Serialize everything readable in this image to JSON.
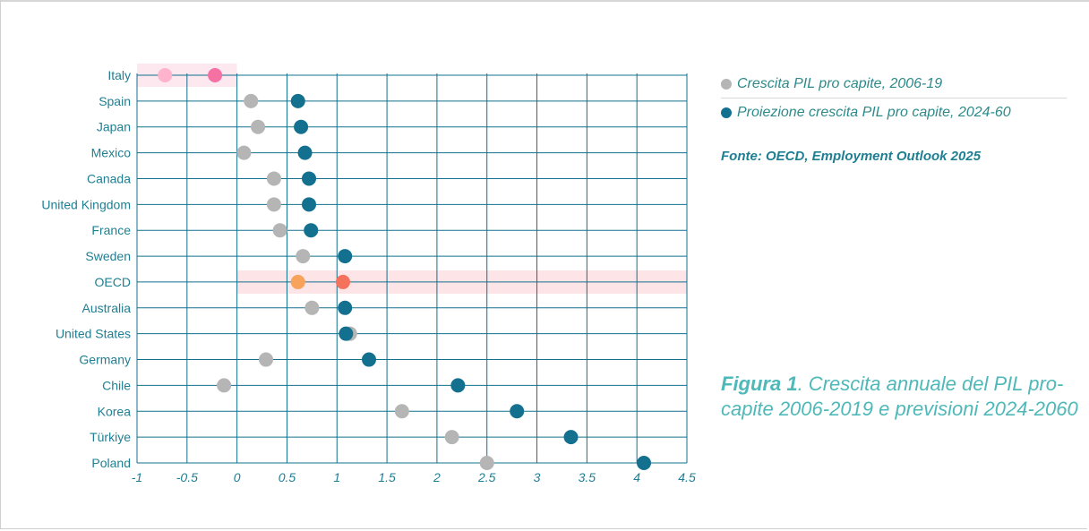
{
  "chart_data": {
    "type": "scatter",
    "title": "",
    "xlabel": "",
    "ylabel": "",
    "xlim": [
      -1,
      4.5
    ],
    "xticks": [
      "-1",
      "-0.5",
      "0",
      "0.5",
      "1",
      "1.5",
      "2",
      "2.5",
      "3",
      "3.5",
      "4",
      "4.5"
    ],
    "grid": true,
    "categories": [
      "Italy",
      "Spain",
      "Japan",
      "Mexico",
      "Canada",
      "United Kingdom",
      "France",
      "Sweden",
      "OECD",
      "Australia",
      "United States",
      "Germany",
      "Chile",
      "Korea",
      "Türkiye",
      "Poland"
    ],
    "series": [
      {
        "name": "Crescita PIL pro capite, 2006-19",
        "color": "#b5b5b5",
        "values": [
          -0.72,
          0.14,
          0.21,
          0.07,
          0.37,
          0.37,
          0.43,
          0.66,
          0.61,
          0.75,
          1.13,
          0.29,
          -0.13,
          1.65,
          2.15,
          2.5
        ]
      },
      {
        "name": "Proiezione crescita PIL pro capite, 2024-60",
        "color": "#13708e",
        "values": [
          -0.22,
          0.61,
          0.64,
          0.68,
          0.72,
          0.72,
          0.74,
          1.08,
          1.06,
          1.08,
          1.09,
          1.32,
          2.21,
          2.8,
          3.34,
          4.07
        ]
      }
    ],
    "highlight": {
      "Italy": {
        "series_colors": [
          "#ffb3cd",
          "#f570a3"
        ],
        "band": "#fde8f0"
      },
      "OECD": {
        "series_colors": [
          "#f7a35c",
          "#f4715b"
        ],
        "band": "#fde4e6"
      }
    },
    "legend_position": "right",
    "legend": [
      "Crescita PIL pro capite, 2006-19",
      "Proiezione crescita PIL pro capite, 2024-60"
    ]
  },
  "source": "Fonte: OECD, Employment Outlook 2025",
  "caption": {
    "bold": "Figura 1",
    "rest": ". Crescita annuale del PIL pro-capite 2006-2019 e previsioni 2024-2060"
  },
  "colors": {
    "grid": "#13708e",
    "axis_text": "#1f7f92",
    "legend_text": "#2e8a8a",
    "caption": "#4fb8b8"
  }
}
